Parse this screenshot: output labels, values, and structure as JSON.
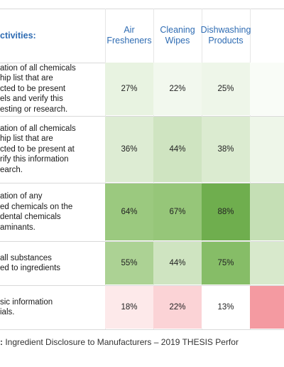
{
  "chart_data": {
    "type": "table",
    "header": {
      "activities": "ctivities:",
      "columns": [
        "Air\nFresheners",
        "Cleaning\nWipes",
        "Dishwashing\nProducts",
        ""
      ]
    },
    "rows": [
      {
        "label": "ation of all chemicals\nhip list that are\ncted to be present\nels and verify this\nesting or research.",
        "values": [
          "27%",
          "22%",
          "25%",
          ""
        ],
        "colors": [
          "#e8f3e1",
          "#f2f8ee",
          "#eef6e9",
          "#f9fcf7"
        ]
      },
      {
        "label": "ation of all chemicals\nhip list that are\ncted to be present at\nrify this information\nearch.",
        "values": [
          "36%",
          "44%",
          "38%",
          ""
        ],
        "colors": [
          "#ddecd3",
          "#cfe4c1",
          "#dbebd0",
          "#eef6e9"
        ]
      },
      {
        "label": "ation of any\ned chemicals on the\ndental chemicals\naminants.",
        "values": [
          "64%",
          "67%",
          "88%",
          ""
        ],
        "colors": [
          "#9bc97f",
          "#96c679",
          "#6fae4e",
          "#c5dfb5"
        ]
      },
      {
        "label": "all substances\ned to ingredients",
        "values": [
          "55%",
          "44%",
          "75%",
          ""
        ],
        "colors": [
          "#acd294",
          "#cfe4c1",
          "#86bd67",
          "#d8e9cc"
        ]
      },
      {
        "label": "sic information\nials.",
        "values": [
          "18%",
          "22%",
          "13%",
          ""
        ],
        "colors": [
          "#fde9ea",
          "#fbd3d6",
          "#ffffff",
          "#f49aa1"
        ]
      }
    ]
  },
  "caption": {
    "prefix": ":",
    "text": " Ingredient Disclosure to Manufacturers – 2019 THESIS Perfor"
  }
}
